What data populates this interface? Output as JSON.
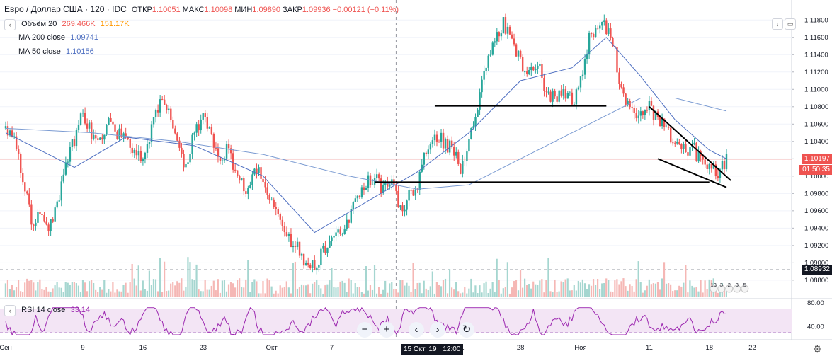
{
  "header": {
    "symbol": "Евро / Доллар США · 120 · IDC",
    "ohlc": [
      {
        "label": "ОТКР",
        "value": "1.10051"
      },
      {
        "label": "МАКС",
        "value": "1.10098"
      },
      {
        "label": "МИН",
        "value": "1.09890"
      },
      {
        "label": "ЗАКР",
        "value": "1.09936"
      }
    ],
    "change": "−0.00121 (−0.11%)"
  },
  "indicators": {
    "volume": {
      "label": "Объём 20",
      "v1": "269.466K",
      "v2": "151.17K"
    },
    "ma200": {
      "label": "MA 200 close",
      "value": "1.09741"
    },
    "ma50": {
      "label": "MA 50 close",
      "value": "1.10156"
    },
    "rsi": {
      "label": "RSI 14 close",
      "value": "33.14"
    }
  },
  "price_axis": {
    "ticks": [
      "1.11800",
      "1.11600",
      "1.11400",
      "1.11200",
      "1.11000",
      "1.10800",
      "1.10600",
      "1.10400",
      "1.10200",
      "1.10000",
      "1.09800",
      "1.09600",
      "1.09400",
      "1.09200",
      "1.09000",
      "1.08800"
    ],
    "last_price": "1.10197",
    "countdown": "01:50:35",
    "crosshair_price": "1.08932"
  },
  "rsi_axis": {
    "ticks": [
      "80.00",
      "40.00"
    ]
  },
  "time_axis": {
    "ticks": [
      "Сен",
      "9",
      "16",
      "23",
      "Окт",
      "7",
      "15 Окт '19",
      "21",
      "28",
      "Ноя",
      "11",
      "18",
      "22"
    ],
    "crosshair_label": "15 Окт '19",
    "crosshair_time": "12:00"
  },
  "events": {
    "numbers": [
      "13",
      "3",
      "2",
      "3",
      "5"
    ]
  },
  "buttons": {
    "arrow_icon": "arrow-down-icon",
    "settings_icon": "gear-icon"
  },
  "colors": {
    "up": "#26a69a",
    "down": "#ef5350",
    "ma200": "#7b9bd2",
    "ma50": "#4e6fc1",
    "rsi": "#9c27b0",
    "rsi_band": "#f3e5f5"
  },
  "chart_data": {
    "type": "candlestick",
    "ylim": [
      1.0875,
      1.119
    ],
    "x_range_days": [
      0,
      84
    ],
    "price_path": [
      [
        0,
        1.1055
      ],
      [
        1,
        1.104
      ],
      [
        2,
        1.1
      ],
      [
        3,
        1.095
      ],
      [
        4,
        1.0955
      ],
      [
        5,
        1.0935
      ],
      [
        6,
        1.0965
      ],
      [
        7,
        1.1015
      ],
      [
        8,
        1.104
      ],
      [
        9,
        1.1075
      ],
      [
        10,
        1.105
      ],
      [
        11,
        1.1045
      ],
      [
        12,
        1.106
      ],
      [
        13,
        1.1045
      ],
      [
        14,
        1.105
      ],
      [
        15,
        1.1025
      ],
      [
        16,
        1.102
      ],
      [
        17,
        1.1055
      ],
      [
        18,
        1.1085
      ],
      [
        19,
        1.107
      ],
      [
        20,
        1.104
      ],
      [
        21,
        1.101
      ],
      [
        22,
        1.105
      ],
      [
        23,
        1.1065
      ],
      [
        24,
        1.1045
      ],
      [
        25,
        1.1025
      ],
      [
        26,
        1.103
      ],
      [
        27,
        1.1
      ],
      [
        28,
        1.098
      ],
      [
        29,
        1.1015
      ],
      [
        30,
        1.1
      ],
      [
        31,
        1.097
      ],
      [
        32,
        1.0945
      ],
      [
        33,
        1.0925
      ],
      [
        34,
        1.092
      ],
      [
        35,
        1.09
      ],
      [
        36,
        1.0895
      ],
      [
        37,
        1.0915
      ],
      [
        38,
        1.0935
      ],
      [
        39,
        1.093
      ],
      [
        40,
        1.095
      ],
      [
        41,
        1.0975
      ],
      [
        42,
        1.0995
      ],
      [
        43,
        1.1
      ],
      [
        44,
        1.0985
      ],
      [
        45,
        1.099
      ],
      [
        46,
        1.096
      ],
      [
        47,
        1.0975
      ],
      [
        48,
        1.099
      ],
      [
        49,
        1.103
      ],
      [
        50,
        1.105
      ],
      [
        51,
        1.104
      ],
      [
        52,
        1.103
      ],
      [
        53,
        1.101
      ],
      [
        54,
        1.104
      ],
      [
        55,
        1.108
      ],
      [
        56,
        1.113
      ],
      [
        57,
        1.116
      ],
      [
        58,
        1.1175
      ],
      [
        59,
        1.116
      ],
      [
        60,
        1.113
      ],
      [
        61,
        1.112
      ],
      [
        62,
        1.1135
      ],
      [
        63,
        1.1095
      ],
      [
        64,
        1.109
      ],
      [
        65,
        1.1095
      ],
      [
        66,
        1.1085
      ],
      [
        67,
        1.111
      ],
      [
        68,
        1.116
      ],
      [
        69,
        1.1175
      ],
      [
        70,
        1.117
      ],
      [
        71,
        1.114
      ],
      [
        72,
        1.109
      ],
      [
        73,
        1.107
      ],
      [
        74,
        1.1075
      ],
      [
        75,
        1.108
      ],
      [
        76,
        1.1065
      ],
      [
        77,
        1.1055
      ],
      [
        78,
        1.104
      ],
      [
        79,
        1.103
      ],
      [
        80,
        1.1035
      ],
      [
        81,
        1.1015
      ],
      [
        82,
        1.1005
      ],
      [
        83,
        1.1005
      ],
      [
        84,
        1.102
      ]
    ],
    "ma50_path": [
      [
        0,
        1.105
      ],
      [
        8,
        1.101
      ],
      [
        14,
        1.1045
      ],
      [
        22,
        1.1035
      ],
      [
        30,
        1.1
      ],
      [
        36,
        1.0935
      ],
      [
        42,
        1.097
      ],
      [
        48,
        1.1005
      ],
      [
        54,
        1.105
      ],
      [
        60,
        1.111
      ],
      [
        66,
        1.1125
      ],
      [
        70,
        1.116
      ],
      [
        74,
        1.1115
      ],
      [
        78,
        1.1065
      ],
      [
        82,
        1.103
      ],
      [
        84,
        1.102
      ]
    ],
    "ma200_path": [
      [
        0,
        1.1055
      ],
      [
        10,
        1.105
      ],
      [
        20,
        1.104
      ],
      [
        30,
        1.1025
      ],
      [
        40,
        1.1
      ],
      [
        48,
        1.0985
      ],
      [
        54,
        1.099
      ],
      [
        62,
        1.103
      ],
      [
        68,
        1.106
      ],
      [
        74,
        1.109
      ],
      [
        78,
        1.109
      ],
      [
        84,
        1.1075
      ]
    ],
    "rsi_ylim": [
      20,
      85
    ],
    "trendlines": [
      {
        "name": "resistance",
        "from": [
          50,
          1.1081
        ],
        "to": [
          70,
          1.1081
        ]
      },
      {
        "name": "support",
        "from": [
          43,
          1.0993
        ],
        "to": [
          82,
          1.0993
        ]
      },
      {
        "name": "wedge-top",
        "from": [
          75,
          1.108
        ],
        "to": [
          84.5,
          1.0995
        ]
      },
      {
        "name": "wedge-bottom",
        "from": [
          76,
          1.102
        ],
        "to": [
          84,
          1.0987
        ]
      }
    ]
  }
}
